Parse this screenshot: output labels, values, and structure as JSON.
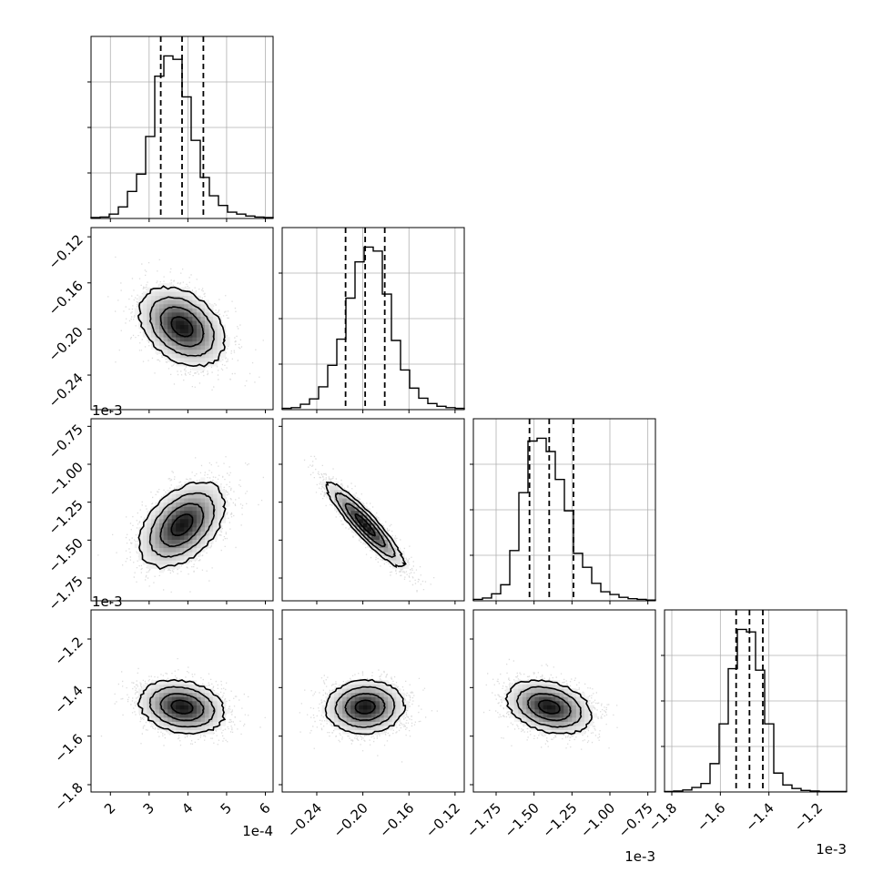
{
  "chart_data": {
    "type": "corner",
    "grid": true,
    "quantiles_shown": [
      0.16,
      0.5,
      0.84
    ],
    "offset_labels": [
      "1e-3",
      "1e-3",
      "1e-4",
      "1e-3",
      "1e-3"
    ],
    "parameters": [
      {
        "range": [
          1.5,
          6.2
        ],
        "ticks": [
          2,
          3,
          4,
          5,
          6
        ],
        "tick_labels": [
          "2",
          "3",
          "4",
          "5",
          "6"
        ],
        "scale": "1e-4",
        "quantiles": [
          3.3,
          3.85,
          4.4
        ],
        "hist": {
          "edges": [
            1.5,
            1.735,
            1.97,
            2.205,
            2.44,
            2.675,
            2.91,
            3.145,
            3.38,
            3.615,
            3.85,
            4.085,
            4.32,
            4.555,
            4.79,
            5.025,
            5.26,
            5.495,
            5.73,
            5.965,
            6.2
          ],
          "counts": [
            2,
            3,
            9,
            24,
            56,
            92,
            170,
            295,
            337,
            330,
            252,
            162,
            85,
            47,
            27,
            13,
            9,
            5,
            3,
            2
          ]
        }
      },
      {
        "range": [
          -0.27,
          -0.112
        ],
        "ticks": [
          -0.24,
          -0.2,
          -0.16,
          -0.12
        ],
        "tick_labels": [
          "−0.24",
          "−0.20",
          "−0.16",
          "−0.12"
        ],
        "scale": "1e-3",
        "quantiles": [
          -0.215,
          -0.198,
          -0.181
        ],
        "hist": {
          "edges": [
            -0.27,
            -0.2621,
            -0.2542,
            -0.2463,
            -0.2384,
            -0.2305,
            -0.2226,
            -0.2147,
            -0.2068,
            -0.1989,
            -0.191,
            -0.1831,
            -0.1752,
            -0.1673,
            -0.1594,
            -0.1515,
            -0.1436,
            -0.1357,
            -0.1278,
            -0.1199,
            -0.112
          ],
          "counts": [
            2,
            3,
            8,
            16,
            34,
            66,
            105,
            166,
            220,
            242,
            236,
            172,
            103,
            59,
            32,
            17,
            9,
            5,
            3,
            2
          ]
        }
      },
      {
        "range": [
          -1.9,
          -0.7
        ],
        "ticks": [
          -1.75,
          -1.5,
          -1.25,
          -1.0,
          -0.75
        ],
        "tick_labels": [
          "−1.75",
          "−1.50",
          "−1.25",
          "−1.00",
          "−0.75"
        ],
        "scale": "1e-3",
        "quantiles": [
          -1.53,
          -1.4,
          -1.24
        ],
        "hist": {
          "edges": [
            -1.9,
            -1.84,
            -1.78,
            -1.72,
            -1.66,
            -1.6,
            -1.54,
            -1.48,
            -1.42,
            -1.36,
            -1.3,
            -1.24,
            -1.18,
            -1.12,
            -1.06,
            -1.0,
            -0.94,
            -0.88,
            -0.82,
            -0.76,
            -0.7
          ],
          "counts": [
            2,
            4,
            10,
            23,
            72,
            155,
            229,
            233,
            214,
            174,
            129,
            68,
            48,
            25,
            13,
            9,
            5,
            3,
            2,
            1
          ]
        }
      },
      {
        "range": [
          -1.83,
          -1.08
        ],
        "ticks": [
          -1.8,
          -1.6,
          -1.4,
          -1.2
        ],
        "tick_labels": [
          "−1.8",
          "−1.6",
          "−1.4",
          "−1.2"
        ],
        "scale": "1e-3",
        "quantiles": [
          -1.535,
          -1.48,
          -1.425
        ],
        "hist": {
          "edges": [
            -1.83,
            -1.7925,
            -1.755,
            -1.7175,
            -1.68,
            -1.6425,
            -1.605,
            -1.5675,
            -1.53,
            -1.4925,
            -1.455,
            -1.4175,
            -1.38,
            -1.3425,
            -1.305,
            -1.2675,
            -1.23,
            -1.1925,
            -1.155,
            -1.1175,
            -1.08
          ],
          "counts": [
            1,
            2,
            4,
            9,
            17,
            57,
            137,
            248,
            327,
            322,
            245,
            137,
            38,
            14,
            7,
            3,
            2,
            1,
            1,
            1
          ]
        }
      }
    ],
    "pairs": [
      {
        "row": 1,
        "col": 0,
        "center": [
          3.85,
          -0.198
        ],
        "sigma": [
          0.55,
          0.017
        ],
        "rho": -0.35
      },
      {
        "row": 2,
        "col": 0,
        "center": [
          3.85,
          -1.4
        ],
        "sigma": [
          0.55,
          0.14
        ],
        "rho": 0.45
      },
      {
        "row": 2,
        "col": 1,
        "center": [
          -0.198,
          -1.4
        ],
        "sigma": [
          0.017,
          0.14
        ],
        "rho": -0.92
      },
      {
        "row": 3,
        "col": 0,
        "center": [
          3.85,
          -1.48
        ],
        "sigma": [
          0.55,
          0.055
        ],
        "rho": -0.2
      },
      {
        "row": 3,
        "col": 1,
        "center": [
          -0.198,
          -1.48
        ],
        "sigma": [
          0.017,
          0.055
        ],
        "rho": 0.05
      },
      {
        "row": 3,
        "col": 2,
        "center": [
          -1.4,
          -1.48
        ],
        "sigma": [
          0.14,
          0.055
        ],
        "rho": -0.3
      }
    ]
  }
}
